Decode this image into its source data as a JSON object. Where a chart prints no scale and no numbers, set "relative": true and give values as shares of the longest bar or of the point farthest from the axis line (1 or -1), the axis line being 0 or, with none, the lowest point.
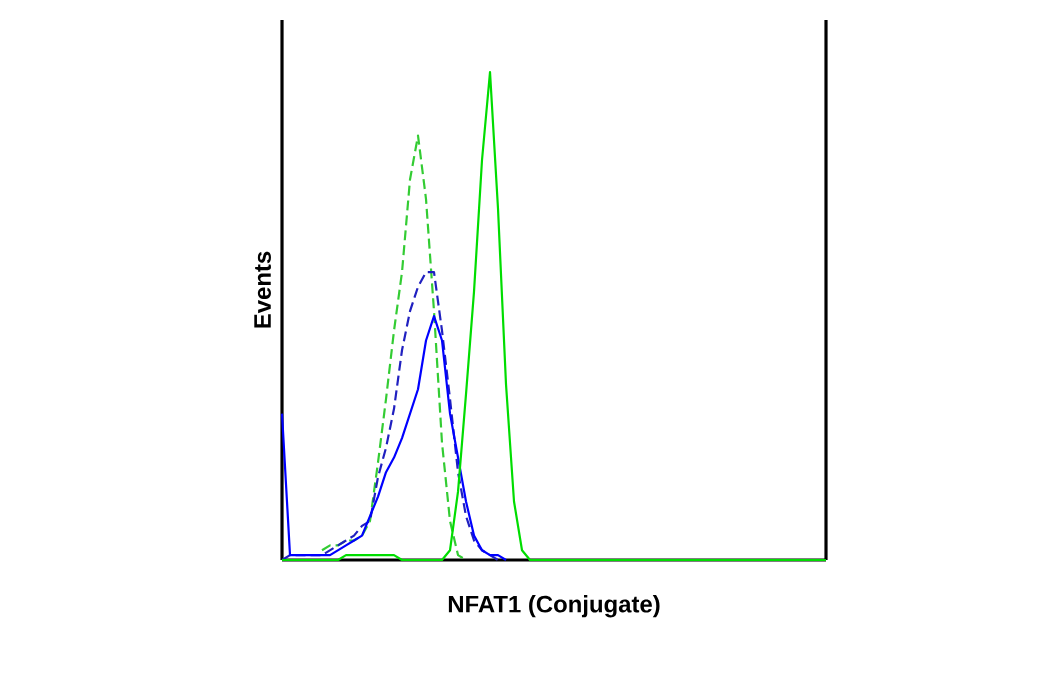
{
  "chart_data": {
    "type": "line",
    "relative": true,
    "xlabel": "NFAT1 (Conjugate)",
    "ylabel": "Events",
    "marker": "none",
    "categories": [
      null,
      null,
      null,
      null,
      null,
      null,
      null,
      null,
      null,
      null,
      null,
      null,
      null,
      null,
      null,
      null,
      null,
      null,
      null,
      null,
      null,
      null,
      null,
      null,
      null,
      null,
      null,
      null,
      null,
      null,
      null,
      null,
      null,
      null,
      null,
      null,
      null,
      null,
      null,
      null,
      null,
      null,
      null,
      null,
      null,
      null,
      null,
      null,
      null,
      null,
      null,
      null,
      null,
      null,
      null,
      null,
      null,
      null,
      null,
      null,
      null,
      null,
      null,
      null,
      null,
      null,
      null,
      null,
      null
    ],
    "series": [
      {
        "color": "#33cc33",
        "line_style": "dashed",
        "values": [
          null,
          null,
          null,
          null,
          null,
          0.02,
          0.03,
          0.03,
          0.04,
          0.04,
          0.05,
          0.08,
          0.2,
          0.33,
          0.47,
          0.59,
          0.78,
          0.87,
          0.74,
          0.51,
          0.24,
          0.08,
          0.01,
          0,
          null,
          null,
          null,
          null,
          null,
          null,
          null,
          null,
          null,
          null,
          null,
          null,
          null,
          null,
          null,
          null,
          null,
          null,
          null,
          null,
          null,
          null,
          null,
          null,
          null,
          null,
          null,
          null,
          null,
          null,
          null,
          null,
          null,
          null,
          null,
          null,
          null,
          null,
          null,
          null,
          null,
          null,
          null,
          null,
          null
        ]
      },
      {
        "color": "#2020c0",
        "line_style": "dashed",
        "values": [
          0,
          0.01,
          0.01,
          0.01,
          0.01,
          0.01,
          0.02,
          0.03,
          0.04,
          0.05,
          0.07,
          0.08,
          0.17,
          0.23,
          0.31,
          0.43,
          0.51,
          0.56,
          0.59,
          0.59,
          0.47,
          0.33,
          0.18,
          0.09,
          0.04,
          0.02,
          0.01,
          0,
          null,
          null,
          null,
          null,
          null,
          null,
          null,
          null,
          null,
          null,
          null,
          null,
          null,
          null,
          null,
          null,
          null,
          null,
          null,
          null,
          null,
          null,
          null,
          null,
          null,
          null,
          null,
          null,
          null,
          null,
          null,
          null,
          null,
          null,
          null,
          null,
          null,
          null,
          null,
          null,
          null
        ]
      },
      {
        "color": "#0000ff",
        "line_style": "solid",
        "values": [
          0.3,
          0.01,
          0.01,
          0.01,
          0.01,
          0.01,
          0.01,
          0.02,
          0.03,
          0.04,
          0.05,
          0.09,
          0.13,
          0.18,
          0.21,
          0.25,
          0.3,
          0.35,
          0.45,
          0.5,
          0.45,
          0.3,
          0.21,
          0.12,
          0.05,
          0.02,
          0.01,
          0.01,
          0,
          null,
          null,
          null,
          null,
          null,
          null,
          null,
          null,
          null,
          null,
          null,
          null,
          null,
          null,
          null,
          null,
          null,
          null,
          null,
          null,
          null,
          null,
          null,
          null,
          null,
          null,
          null,
          null,
          null,
          null,
          null,
          null,
          null,
          null,
          null,
          null,
          null,
          null,
          null,
          null
        ]
      },
      {
        "color": "#00dd00",
        "line_style": "solid",
        "values": [
          0,
          0,
          0,
          0,
          0,
          0,
          0,
          0,
          0.01,
          0.01,
          0.01,
          0.01,
          0.01,
          0.01,
          0.01,
          0,
          0,
          0,
          0,
          0,
          0,
          0.02,
          0.14,
          0.34,
          0.55,
          0.82,
          1,
          0.72,
          0.36,
          0.12,
          0.02,
          0,
          0,
          0,
          0,
          0,
          0,
          0,
          0,
          0,
          0,
          0,
          0,
          0,
          0,
          0,
          0,
          0,
          0,
          0,
          0,
          0,
          0,
          0,
          0,
          0,
          0,
          0,
          0,
          0,
          0,
          0,
          0,
          0,
          0,
          0,
          0,
          0,
          0
        ]
      }
    ]
  }
}
